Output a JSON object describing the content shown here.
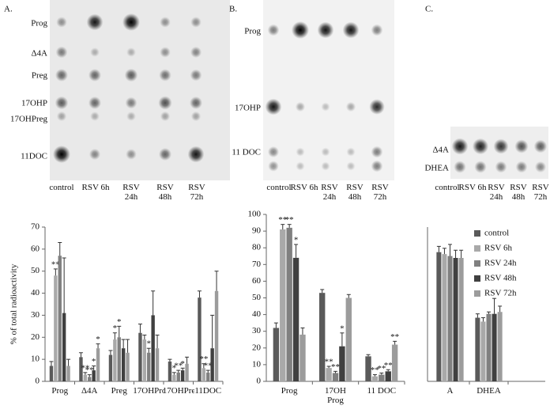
{
  "panels": [
    {
      "label": "A.",
      "row_labels": [
        "Prog",
        "Δ4A",
        "Preg",
        "17OHP",
        "17OHPreg",
        "11DOC"
      ],
      "lane_labels": [
        "control",
        "RSV 6h",
        "RSV 24h",
        "RSV 48h",
        "RSV 72h"
      ]
    },
    {
      "label": "B.",
      "row_labels": [
        "Prog",
        "17OHP",
        "11 DOC"
      ],
      "lane_labels": [
        "control",
        "RSV 6h",
        "RSV 24h",
        "RSV 48h",
        "RSV 72h"
      ]
    },
    {
      "label": "C.",
      "row_labels": [
        "Δ4A",
        "DHEA"
      ],
      "lane_labels": [
        "control",
        "RSV 6h",
        "RSV 24h",
        "RSV 48h",
        "RSV 72h"
      ]
    }
  ],
  "chart_data": [
    {
      "type": "bar",
      "y_label": "% of total radioactivity",
      "categories": [
        "Prog",
        "Δ4A",
        "Preg",
        "17OHProg",
        "17OHPreg",
        "11DOC"
      ],
      "ylim": [
        0,
        70
      ],
      "yticks": [
        0,
        10,
        20,
        30,
        40,
        50,
        60,
        70
      ],
      "series": [
        {
          "name": "control",
          "color": "#5a5a5a",
          "values": [
            7,
            11,
            12,
            22,
            9,
            38
          ],
          "errors": [
            2,
            2,
            2,
            4,
            1,
            3
          ],
          "significance": [
            null,
            null,
            null,
            null,
            null,
            null
          ]
        },
        {
          "name": "RSV 6h",
          "color": "#a9a9a9",
          "values": [
            48,
            3,
            19,
            19,
            3,
            6
          ],
          "errors": [
            3,
            1,
            3,
            2,
            1,
            2
          ],
          "significance": [
            "**",
            "**",
            "*",
            null,
            "*",
            "**"
          ]
        },
        {
          "name": "RSV 24h",
          "color": "#808080",
          "values": [
            57,
            2,
            20,
            13,
            4,
            4
          ],
          "errors": [
            6,
            1,
            5,
            2,
            1,
            1
          ],
          "significance": [
            null,
            "**",
            "*",
            "*",
            "**",
            "**"
          ]
        },
        {
          "name": "RSV 48h",
          "color": "#404040",
          "values": [
            31,
            5,
            15,
            30,
            5,
            15
          ],
          "errors": [
            25,
            2,
            4,
            11,
            1,
            15
          ],
          "significance": [
            null,
            "*",
            null,
            null,
            "*",
            null
          ]
        },
        {
          "name": "RSV 72h",
          "color": "#9c9c9c",
          "values": [
            7,
            15,
            13,
            15,
            8,
            41
          ],
          "errors": [
            3,
            2,
            6,
            6,
            3,
            9
          ],
          "significance": [
            null,
            "*",
            null,
            null,
            null,
            null
          ]
        }
      ]
    },
    {
      "type": "bar",
      "categories": [
        "Prog",
        "17OH Prog",
        "11 DOC"
      ],
      "ylim": [
        0,
        100
      ],
      "yticks": [
        0,
        10,
        20,
        30,
        40,
        50,
        60,
        70,
        80,
        90,
        100
      ],
      "series": [
        {
          "name": "control",
          "color": "#5a5a5a",
          "values": [
            32,
            53,
            15
          ],
          "errors": [
            3,
            2,
            1
          ],
          "significance": [
            null,
            null,
            null
          ]
        },
        {
          "name": "RSV 6h",
          "color": "#a9a9a9",
          "values": [
            91,
            8,
            3
          ],
          "errors": [
            3,
            1,
            1
          ],
          "significance": [
            "**",
            "**",
            "**"
          ]
        },
        {
          "name": "RSV 24h",
          "color": "#808080",
          "values": [
            92,
            5,
            4
          ],
          "errors": [
            2,
            1,
            1
          ],
          "significance": [
            "**",
            "**",
            "**"
          ]
        },
        {
          "name": "RSV 48h",
          "color": "#404040",
          "values": [
            74,
            21,
            6
          ],
          "errors": [
            8,
            8,
            1
          ],
          "significance": [
            "*",
            "*",
            "**"
          ]
        },
        {
          "name": "RSV 72h",
          "color": "#9c9c9c",
          "values": [
            28,
            50,
            22
          ],
          "errors": [
            4,
            2,
            2
          ],
          "significance": [
            null,
            null,
            "**"
          ]
        }
      ]
    },
    {
      "type": "bar",
      "legend": "right",
      "categories": [
        "A",
        "DHEA"
      ],
      "ylim": [
        0,
        80
      ],
      "series": [
        {
          "name": "control",
          "color": "#5a5a5a",
          "values": [
            67,
            33
          ],
          "errors": [
            3,
            2
          ]
        },
        {
          "name": "RSV 6h",
          "color": "#a9a9a9",
          "values": [
            66,
            31
          ],
          "errors": [
            3,
            2
          ]
        },
        {
          "name": "RSV 24h",
          "color": "#808080",
          "values": [
            65,
            35
          ],
          "errors": [
            6,
            1
          ]
        },
        {
          "name": "RSV 48h",
          "color": "#404040",
          "values": [
            64,
            35
          ],
          "errors": [
            4,
            8
          ]
        },
        {
          "name": "RSV 72h",
          "color": "#9c9c9c",
          "values": [
            64,
            36
          ],
          "errors": [
            4,
            3
          ]
        }
      ]
    }
  ]
}
